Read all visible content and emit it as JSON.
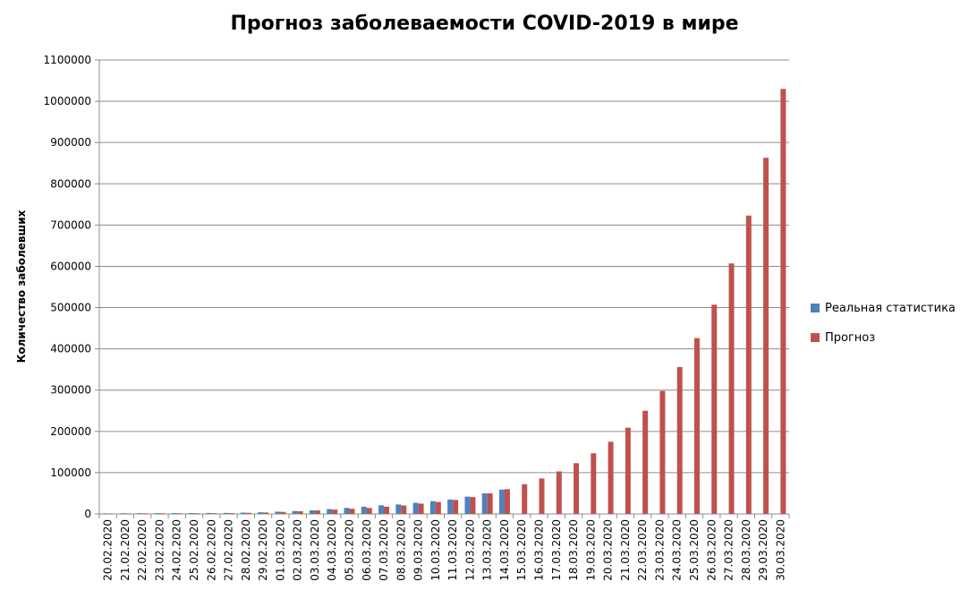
{
  "chart_data": {
    "type": "bar",
    "title": "Прогноз заболеваемости COVID-2019 в мире",
    "xlabel": "",
    "ylabel": "Количество заболевших",
    "ylim": [
      0,
      1100000
    ],
    "yticks": [
      0,
      100000,
      200000,
      300000,
      400000,
      500000,
      600000,
      700000,
      800000,
      900000,
      1000000,
      1100000
    ],
    "grid": true,
    "legend_position": "right",
    "categories": [
      "20.02.2020",
      "21.02.2020",
      "22.02.2020",
      "23.02.2020",
      "24.02.2020",
      "25.02.2020",
      "26.02.2020",
      "27.02.2020",
      "28.02.2020",
      "29.02.2020",
      "01.03.2020",
      "02.03.2020",
      "03.03.2020",
      "04.03.2020",
      "05.03.2020",
      "06.03.2020",
      "07.03.2020",
      "08.03.2020",
      "09.03.2020",
      "10.03.2020",
      "11.03.2020",
      "12.03.2020",
      "13.03.2020",
      "14.03.2020",
      "15.03.2020",
      "16.03.2020",
      "17.03.2020",
      "18.03.2020",
      "19.03.2020",
      "20.03.2020",
      "21.03.2020",
      "22.03.2020",
      "23.03.2020",
      "24.03.2020",
      "25.03.2020",
      "26.03.2020",
      "27.03.2020",
      "28.03.2020",
      "29.03.2020",
      "30.03.2020"
    ],
    "series": [
      {
        "name": "Реальная статистика",
        "color": "#4f81bd",
        "values": [
          1500,
          1700,
          1900,
          2000,
          2100,
          2200,
          2400,
          2600,
          3200,
          4000,
          5500,
          7000,
          9000,
          12000,
          14500,
          17500,
          21000,
          23000,
          27000,
          31000,
          35000,
          42000,
          50000,
          59000,
          null,
          null,
          null,
          null,
          null,
          null,
          null,
          null,
          null,
          null,
          null,
          null,
          null,
          null,
          null,
          null
        ]
      },
      {
        "name": "Прогноз",
        "color": "#c0504d",
        "values": [
          1000,
          1200,
          1400,
          1500,
          1600,
          1700,
          1900,
          2100,
          2700,
          3500,
          5000,
          6500,
          8500,
          10500,
          12500,
          14500,
          17500,
          20500,
          25000,
          29000,
          34000,
          41000,
          50000,
          60000,
          72000,
          86000,
          103000,
          123000,
          147000,
          175000,
          209000,
          250000,
          298000,
          356000,
          426000,
          507000,
          607000,
          723000,
          863000,
          1030000
        ]
      }
    ]
  }
}
